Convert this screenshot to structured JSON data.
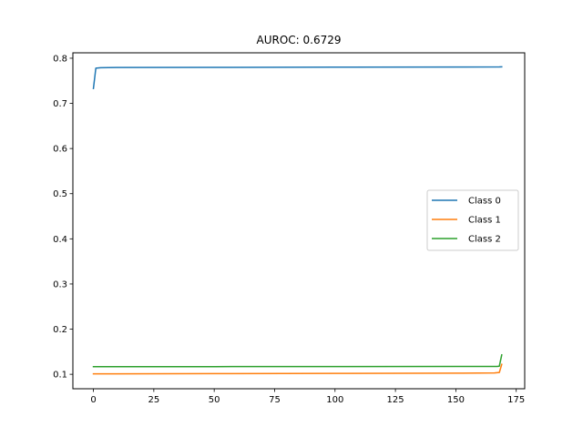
{
  "chart_data": {
    "type": "line",
    "title": "AUROC: 0.6729",
    "xlabel": "",
    "ylabel": "",
    "xlim": [
      -8.5,
      178.5
    ],
    "ylim": [
      0.068,
      0.812
    ],
    "xticks": [
      0,
      25,
      50,
      75,
      100,
      125,
      150,
      175
    ],
    "yticks": [
      0.1,
      0.2,
      0.3,
      0.4,
      0.5,
      0.6,
      0.7,
      0.8
    ],
    "grid": false,
    "legend_position": "center-right",
    "series": [
      {
        "name": "Class 0",
        "color": "#1f77b4",
        "points": [
          [
            0,
            0.733
          ],
          [
            1,
            0.778
          ],
          [
            3,
            0.779
          ],
          [
            10,
            0.7795
          ],
          [
            50,
            0.7798
          ],
          [
            100,
            0.7802
          ],
          [
            150,
            0.7805
          ],
          [
            168,
            0.7807
          ],
          [
            169,
            0.781
          ]
        ]
      },
      {
        "name": "Class 1",
        "color": "#ff7f0e",
        "points": [
          [
            0,
            0.101
          ],
          [
            50,
            0.1015
          ],
          [
            100,
            0.102
          ],
          [
            150,
            0.1025
          ],
          [
            166,
            0.103
          ],
          [
            168,
            0.104
          ],
          [
            169,
            0.122
          ]
        ]
      },
      {
        "name": "Class 2",
        "color": "#2ca02c",
        "points": [
          [
            0,
            0.117
          ],
          [
            50,
            0.117
          ],
          [
            100,
            0.1172
          ],
          [
            150,
            0.1175
          ],
          [
            167,
            0.1175
          ],
          [
            168,
            0.118
          ],
          [
            169,
            0.143
          ]
        ]
      }
    ]
  }
}
